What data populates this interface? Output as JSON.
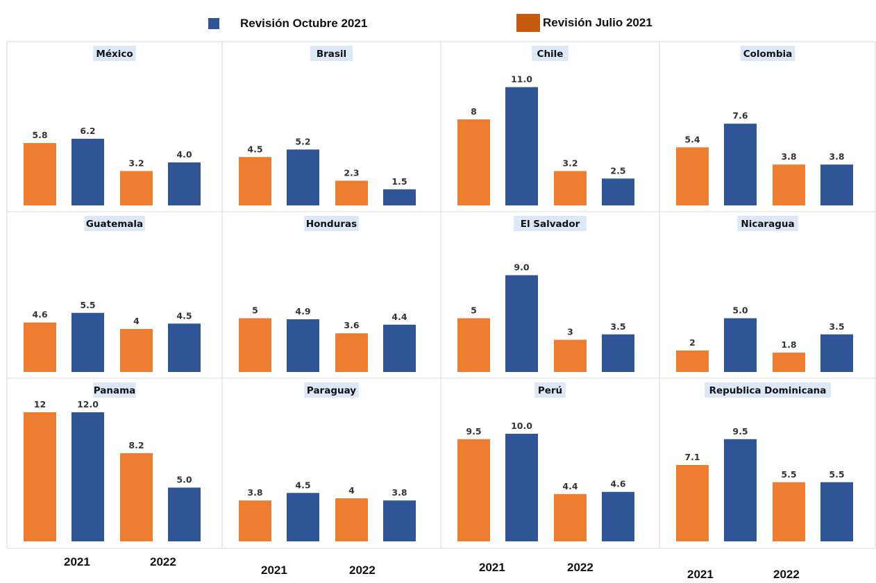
{
  "legend": [
    {
      "label": "Revisión Octubre 2021",
      "color": "#2f5597"
    },
    {
      "label": "Revisión Julio 2021",
      "color": "#c55a11"
    }
  ],
  "bar_colors": {
    "Revisión Julio 2021": "#ed7d31",
    "Revisión Octubre 2021": "#2f5597"
  },
  "chart_data": [
    {
      "type": "bar",
      "title": "México",
      "categories": [
        "2021",
        "2022"
      ],
      "series": [
        {
          "name": "Revisión Julio 2021",
          "values": [
            5.8,
            3.2
          ]
        },
        {
          "name": "Revisión Octubre 2021",
          "values": [
            6.2,
            4.0
          ]
        }
      ],
      "labels": [
        "5.8",
        "6.2",
        "3.2",
        "4.0"
      ]
    },
    {
      "type": "bar",
      "title": "Brasil",
      "categories": [
        "2021",
        "2022"
      ],
      "series": [
        {
          "name": "Revisión Julio 2021",
          "values": [
            4.5,
            2.3
          ]
        },
        {
          "name": "Revisión Octubre 2021",
          "values": [
            5.2,
            1.5
          ]
        }
      ],
      "labels": [
        "4.5",
        "5.2",
        "2.3",
        "1.5"
      ]
    },
    {
      "type": "bar",
      "title": "Chile",
      "categories": [
        "2021",
        "2022"
      ],
      "series": [
        {
          "name": "Revisión Julio 2021",
          "values": [
            8,
            3.2
          ]
        },
        {
          "name": "Revisión Octubre 2021",
          "values": [
            11.0,
            2.5
          ]
        }
      ],
      "labels": [
        "8",
        "11.0",
        "3.2",
        "2.5"
      ]
    },
    {
      "type": "bar",
      "title": "Colombia",
      "categories": [
        "2021",
        "2022"
      ],
      "series": [
        {
          "name": "Revisión Julio 2021",
          "values": [
            5.4,
            3.8
          ]
        },
        {
          "name": "Revisión Octubre 2021",
          "values": [
            7.6,
            3.8
          ]
        }
      ],
      "labels": [
        "5.4",
        "7.6",
        "3.8",
        "3.8"
      ]
    },
    {
      "type": "bar",
      "title": "Guatemala",
      "categories": [
        "2021",
        "2022"
      ],
      "series": [
        {
          "name": "Revisión Julio 2021",
          "values": [
            4.6,
            4
          ]
        },
        {
          "name": "Revisión Octubre 2021",
          "values": [
            5.5,
            4.5
          ]
        }
      ],
      "labels": [
        "4.6",
        "5.5",
        "4",
        "4.5"
      ]
    },
    {
      "type": "bar",
      "title": "Honduras",
      "categories": [
        "2021",
        "2022"
      ],
      "series": [
        {
          "name": "Revisión Julio 2021",
          "values": [
            5,
            3.6
          ]
        },
        {
          "name": "Revisión Octubre 2021",
          "values": [
            4.9,
            4.4
          ]
        }
      ],
      "labels": [
        "5",
        "4.9",
        "3.6",
        "4.4"
      ]
    },
    {
      "type": "bar",
      "title": "El Salvador",
      "categories": [
        "2021",
        "2022"
      ],
      "series": [
        {
          "name": "Revisión Julio 2021",
          "values": [
            5,
            3
          ]
        },
        {
          "name": "Revisión Octubre 2021",
          "values": [
            9.0,
            3.5
          ]
        }
      ],
      "labels": [
        "5",
        "9.0",
        "3",
        "3.5"
      ]
    },
    {
      "type": "bar",
      "title": "Nicaragua",
      "categories": [
        "2021",
        "2022"
      ],
      "series": [
        {
          "name": "Revisión Julio 2021",
          "values": [
            2,
            1.8
          ]
        },
        {
          "name": "Revisión Octubre 2021",
          "values": [
            5.0,
            3.5
          ]
        }
      ],
      "labels": [
        "2",
        "5.0",
        "1.8",
        "3.5"
      ]
    },
    {
      "type": "bar",
      "title": "Panama",
      "categories": [
        "2021",
        "2022"
      ],
      "series": [
        {
          "name": "Revisión Julio 2021",
          "values": [
            12,
            8.2
          ]
        },
        {
          "name": "Revisión Octubre 2021",
          "values": [
            12.0,
            5.0
          ]
        }
      ],
      "labels": [
        "12",
        "12.0",
        "8.2",
        "5.0"
      ]
    },
    {
      "type": "bar",
      "title": "Paraguay",
      "categories": [
        "2021",
        "2022"
      ],
      "series": [
        {
          "name": "Revisión Julio 2021",
          "values": [
            3.8,
            4
          ]
        },
        {
          "name": "Revisión Octubre 2021",
          "values": [
            4.5,
            3.8
          ]
        }
      ],
      "labels": [
        "3.8",
        "4.5",
        "4",
        "3.8"
      ]
    },
    {
      "type": "bar",
      "title": "Perú",
      "categories": [
        "2021",
        "2022"
      ],
      "series": [
        {
          "name": "Revisión Julio 2021",
          "values": [
            9.5,
            4.4
          ]
        },
        {
          "name": "Revisión Octubre 2021",
          "values": [
            10.0,
            4.6
          ]
        }
      ],
      "labels": [
        "9.5",
        "10.0",
        "4.4",
        "4.6"
      ]
    },
    {
      "type": "bar",
      "title": "Republica Dominicana",
      "categories": [
        "2021",
        "2022"
      ],
      "series": [
        {
          "name": "Revisión Julio 2021",
          "values": [
            7.1,
            5.5
          ]
        },
        {
          "name": "Revisión Octubre 2021",
          "values": [
            9.5,
            5.5
          ]
        }
      ],
      "labels": [
        "7.1",
        "9.5",
        "5.5",
        "5.5"
      ]
    }
  ]
}
